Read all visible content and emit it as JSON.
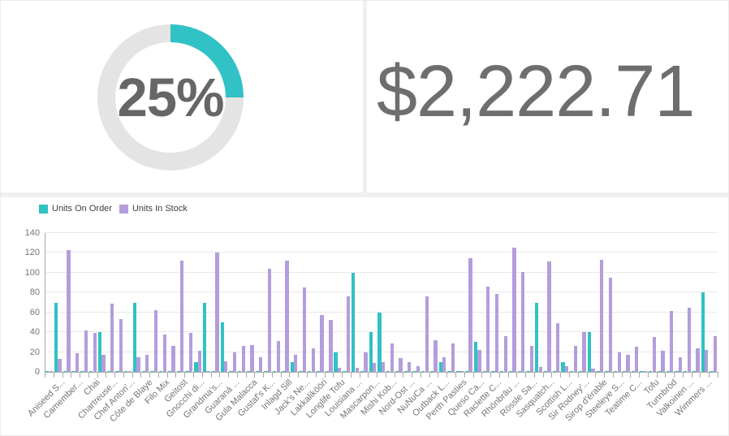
{
  "page": {
    "background": "#f0f0f0",
    "card_background": "#ffffff"
  },
  "gauge": {
    "percent": 25,
    "label": "25%",
    "accent_color": "#30c2c4",
    "track_color": "#e4e4e4",
    "label_color": "#666666"
  },
  "metric": {
    "value": "$2,222.71",
    "color": "#6e6e6e"
  },
  "chart_data": {
    "type": "bar",
    "title": "",
    "legend_position": "top-left",
    "grid": true,
    "ylim": [
      0,
      140
    ],
    "yticks": [
      0,
      20,
      40,
      60,
      80,
      100,
      120,
      140
    ],
    "n_categories": 77,
    "series": [
      {
        "name": "Units On Order",
        "color": "#30c2c4",
        "values": [
          0,
          70,
          0,
          0,
          0,
          0,
          40,
          0,
          0,
          0,
          70,
          0,
          0,
          0,
          0,
          0,
          0,
          10,
          70,
          0,
          50,
          0,
          0,
          0,
          0,
          0,
          0,
          0,
          10,
          0,
          0,
          0,
          0,
          20,
          0,
          100,
          0,
          40,
          60,
          0,
          0,
          0,
          0,
          0,
          0,
          10,
          0,
          0,
          0,
          30,
          0,
          0,
          0,
          0,
          0,
          0,
          70,
          0,
          0,
          10,
          0,
          0,
          40,
          0,
          0,
          0,
          0,
          0,
          0,
          0,
          0,
          0,
          0,
          0,
          0,
          80,
          0
        ]
      },
      {
        "name": "Units In Stock",
        "color": "#b49ddb",
        "values": [
          0,
          13,
          123,
          19,
          42,
          39,
          17,
          69,
          53,
          0,
          15,
          17,
          62,
          38,
          26,
          112,
          39,
          21,
          0,
          120,
          11,
          20,
          26,
          27,
          15,
          104,
          31,
          112,
          17,
          85,
          24,
          57,
          52,
          4,
          76,
          4,
          20,
          9,
          10,
          29,
          14,
          10,
          6,
          76,
          32,
          15,
          29,
          0,
          115,
          22,
          86,
          79,
          36,
          125,
          101,
          26,
          5,
          111,
          49,
          6,
          26,
          40,
          3,
          113,
          95,
          20,
          17,
          25,
          0,
          35,
          21,
          61,
          15,
          65,
          24,
          22,
          36
        ]
      }
    ],
    "axis_labels": [
      "",
      "Aniseed S...",
      "",
      "Camember...",
      "",
      "Chai",
      "",
      "Chartreuse...",
      "",
      "Chef Anton'...",
      "",
      "Côte de Blaye",
      "",
      "Filo Mix",
      "",
      "Geitost",
      "",
      "Gnocchi di...",
      "",
      "Grandma's...",
      "",
      "Guaraná ...",
      "",
      "Gula Malacca",
      "",
      "Gustaf's K...",
      "",
      "Inlagd Sill",
      "",
      "Jack's Ne...",
      "",
      "Lakkalikööri",
      "",
      "Longlife Tofu",
      "",
      "Louisiana ...",
      "",
      "Mascarpon...",
      "",
      "Mishi Kob...",
      "",
      "Nord-Ost ...",
      "",
      "NuNuCa ...",
      "",
      "Outback L...",
      "",
      "Perth Pasties",
      "",
      "Queso Ca...",
      "",
      "Raclette C...",
      "",
      "Rhönbräu ...",
      "",
      "Rössle Sa...",
      "",
      "Sasquatch...",
      "",
      "Scottish L...",
      "",
      "Sir Rodney'...",
      "",
      "Sirop d'érable",
      "",
      "Steeleye S...",
      "",
      "Teatime C...",
      "",
      "Tofu",
      "",
      "Tunnbröd",
      "",
      "Valkoinen ...",
      "",
      "Wimmers ...",
      ""
    ],
    "axis_color": "#a8a8a8",
    "gridline_color": "#e8e8e8",
    "tick_label_color": "#767676",
    "legend_text_color": "#404040"
  }
}
